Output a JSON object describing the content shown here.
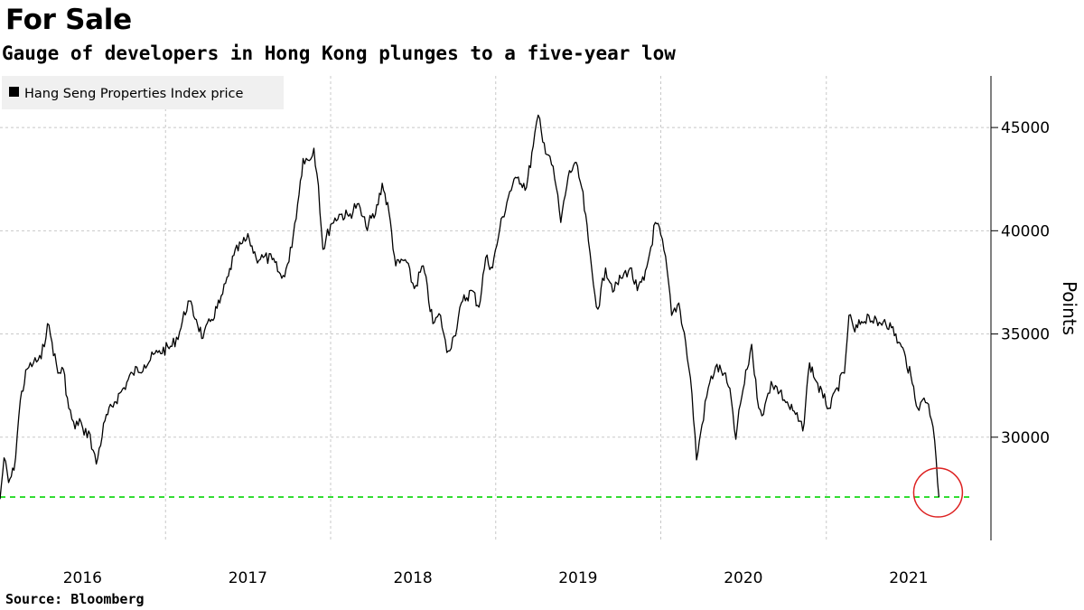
{
  "header": {
    "title": "For Sale",
    "subtitle": "Gauge of developers in Hong Kong plunges to a five-year low"
  },
  "footer": {
    "source": "Source: Bloomberg"
  },
  "chart_data": {
    "type": "line",
    "ylabel": "Points",
    "legend": {
      "placement": "top-left",
      "entries": [
        "Hang Seng Properties Index price"
      ]
    },
    "series": [
      {
        "name": "Hang Seng Properties Index price",
        "color": "#000000",
        "points": [
          [
            "2016-01-01",
            27000
          ],
          [
            "2016-01-10",
            29000
          ],
          [
            "2016-01-20",
            27800
          ],
          [
            "2016-02-01",
            28400
          ],
          [
            "2016-02-15",
            31800
          ],
          [
            "2016-03-01",
            33300
          ],
          [
            "2016-03-15",
            33600
          ],
          [
            "2016-04-01",
            33800
          ],
          [
            "2016-04-15",
            35500
          ],
          [
            "2016-04-25",
            34600
          ],
          [
            "2016-05-08",
            33100
          ],
          [
            "2016-05-20",
            33300
          ],
          [
            "2016-06-01",
            31400
          ],
          [
            "2016-06-15",
            30400
          ],
          [
            "2016-06-25",
            30900
          ],
          [
            "2016-07-05",
            30100
          ],
          [
            "2016-07-15",
            30300
          ],
          [
            "2016-08-01",
            28700
          ],
          [
            "2016-08-20",
            30800
          ],
          [
            "2016-09-10",
            31700
          ],
          [
            "2016-10-01",
            32400
          ],
          [
            "2016-10-20",
            33100
          ],
          [
            "2016-11-15",
            33500
          ],
          [
            "2016-12-15",
            34100
          ],
          [
            "2017-01-15",
            34400
          ],
          [
            "2017-02-01",
            35100
          ],
          [
            "2017-02-20",
            36600
          ],
          [
            "2017-03-10",
            35700
          ],
          [
            "2017-03-25",
            34800
          ],
          [
            "2017-04-10",
            35600
          ],
          [
            "2017-05-01",
            36500
          ],
          [
            "2017-05-20",
            37800
          ],
          [
            "2017-06-01",
            38800
          ],
          [
            "2017-06-20",
            39400
          ],
          [
            "2017-07-05",
            39600
          ],
          [
            "2017-07-20",
            38700
          ],
          [
            "2017-08-05",
            38700
          ],
          [
            "2017-08-25",
            38600
          ],
          [
            "2017-09-15",
            37700
          ],
          [
            "2017-10-01",
            38500
          ],
          [
            "2017-10-20",
            41300
          ],
          [
            "2017-11-01",
            43500
          ],
          [
            "2017-11-15",
            43400
          ],
          [
            "2017-11-25",
            44000
          ],
          [
            "2017-12-05",
            42200
          ],
          [
            "2017-12-15",
            39100
          ],
          [
            "2018-01-01",
            40300
          ],
          [
            "2018-01-20",
            40800
          ],
          [
            "2018-02-10",
            40700
          ],
          [
            "2018-03-01",
            41300
          ],
          [
            "2018-03-20",
            40200
          ],
          [
            "2018-04-10",
            40800
          ],
          [
            "2018-04-25",
            42300
          ],
          [
            "2018-05-10",
            40900
          ],
          [
            "2018-05-25",
            38300
          ],
          [
            "2018-06-15",
            38600
          ],
          [
            "2018-07-05",
            37200
          ],
          [
            "2018-07-25",
            38300
          ],
          [
            "2018-08-15",
            35500
          ],
          [
            "2018-09-01",
            35900
          ],
          [
            "2018-09-15",
            34100
          ],
          [
            "2018-10-01",
            34900
          ],
          [
            "2018-10-20",
            36600
          ],
          [
            "2018-11-10",
            37100
          ],
          [
            "2018-11-25",
            36300
          ],
          [
            "2018-12-10",
            38700
          ],
          [
            "2018-12-25",
            38200
          ],
          [
            "2019-01-10",
            40100
          ],
          [
            "2019-02-01",
            41900
          ],
          [
            "2019-02-20",
            42600
          ],
          [
            "2019-03-10",
            42100
          ],
          [
            "2019-03-25",
            44100
          ],
          [
            "2019-04-05",
            45600
          ],
          [
            "2019-04-15",
            44300
          ],
          [
            "2019-05-01",
            43600
          ],
          [
            "2019-05-15",
            42100
          ],
          [
            "2019-05-25",
            40400
          ],
          [
            "2019-06-10",
            42600
          ],
          [
            "2019-06-25",
            43300
          ],
          [
            "2019-07-10",
            42100
          ],
          [
            "2019-07-25",
            39500
          ],
          [
            "2019-08-05",
            37400
          ],
          [
            "2019-08-15",
            36200
          ],
          [
            "2019-09-01",
            38200
          ],
          [
            "2019-09-20",
            37100
          ],
          [
            "2019-10-05",
            37700
          ],
          [
            "2019-10-25",
            38200
          ],
          [
            "2019-11-10",
            37100
          ],
          [
            "2019-11-25",
            37600
          ],
          [
            "2019-12-10",
            39200
          ],
          [
            "2019-12-20",
            40400
          ],
          [
            "2020-01-01",
            39800
          ],
          [
            "2020-01-15",
            38100
          ],
          [
            "2020-01-25",
            35900
          ],
          [
            "2020-02-10",
            36500
          ],
          [
            "2020-02-25",
            34600
          ],
          [
            "2020-03-10",
            32100
          ],
          [
            "2020-03-20",
            28900
          ],
          [
            "2020-04-01",
            30600
          ],
          [
            "2020-04-15",
            32400
          ],
          [
            "2020-05-01",
            33400
          ],
          [
            "2020-05-20",
            33100
          ],
          [
            "2020-06-05",
            31800
          ],
          [
            "2020-06-15",
            29900
          ],
          [
            "2020-06-25",
            31600
          ],
          [
            "2020-07-10",
            33300
          ],
          [
            "2020-07-20",
            34500
          ],
          [
            "2020-08-01",
            31900
          ],
          [
            "2020-08-15",
            31100
          ],
          [
            "2020-09-01",
            32700
          ],
          [
            "2020-09-20",
            32200
          ],
          [
            "2020-10-10",
            31500
          ],
          [
            "2020-10-25",
            31100
          ],
          [
            "2020-11-10",
            30300
          ],
          [
            "2020-11-25",
            33600
          ],
          [
            "2020-12-10",
            32700
          ],
          [
            "2020-12-25",
            31900
          ],
          [
            "2021-01-10",
            31400
          ],
          [
            "2021-01-25",
            32400
          ],
          [
            "2021-02-10",
            33100
          ],
          [
            "2021-02-20",
            35900
          ],
          [
            "2021-03-05",
            35100
          ],
          [
            "2021-03-20",
            35600
          ],
          [
            "2021-04-05",
            35900
          ],
          [
            "2021-04-25",
            35400
          ],
          [
            "2021-05-10",
            35700
          ],
          [
            "2021-05-25",
            35300
          ],
          [
            "2021-06-10",
            34600
          ],
          [
            "2021-06-25",
            33900
          ],
          [
            "2021-07-10",
            32600
          ],
          [
            "2021-07-25",
            31300
          ],
          [
            "2021-08-05",
            31900
          ],
          [
            "2021-08-15",
            31600
          ],
          [
            "2021-08-25",
            30500
          ],
          [
            "2021-09-01",
            28900
          ],
          [
            "2021-09-07",
            27100
          ]
        ]
      }
    ],
    "reference_line": {
      "y": 27100,
      "color": "#33dd33",
      "style": "dashed"
    },
    "highlight": {
      "shape": "circle",
      "color": "#dd2222",
      "at": [
        "2021-09-07",
        27100
      ]
    },
    "x_ticks": [
      "2016",
      "2017",
      "2018",
      "2019",
      "2020",
      "2021"
    ],
    "y_ticks": [
      30000,
      35000,
      40000,
      45000
    ],
    "xlim": [
      "2016-01-01",
      "2021-12-31"
    ],
    "ylim": [
      25000,
      47500
    ],
    "y_axis_side": "right",
    "grid": {
      "x": true,
      "y": true,
      "style": "dashed"
    }
  }
}
